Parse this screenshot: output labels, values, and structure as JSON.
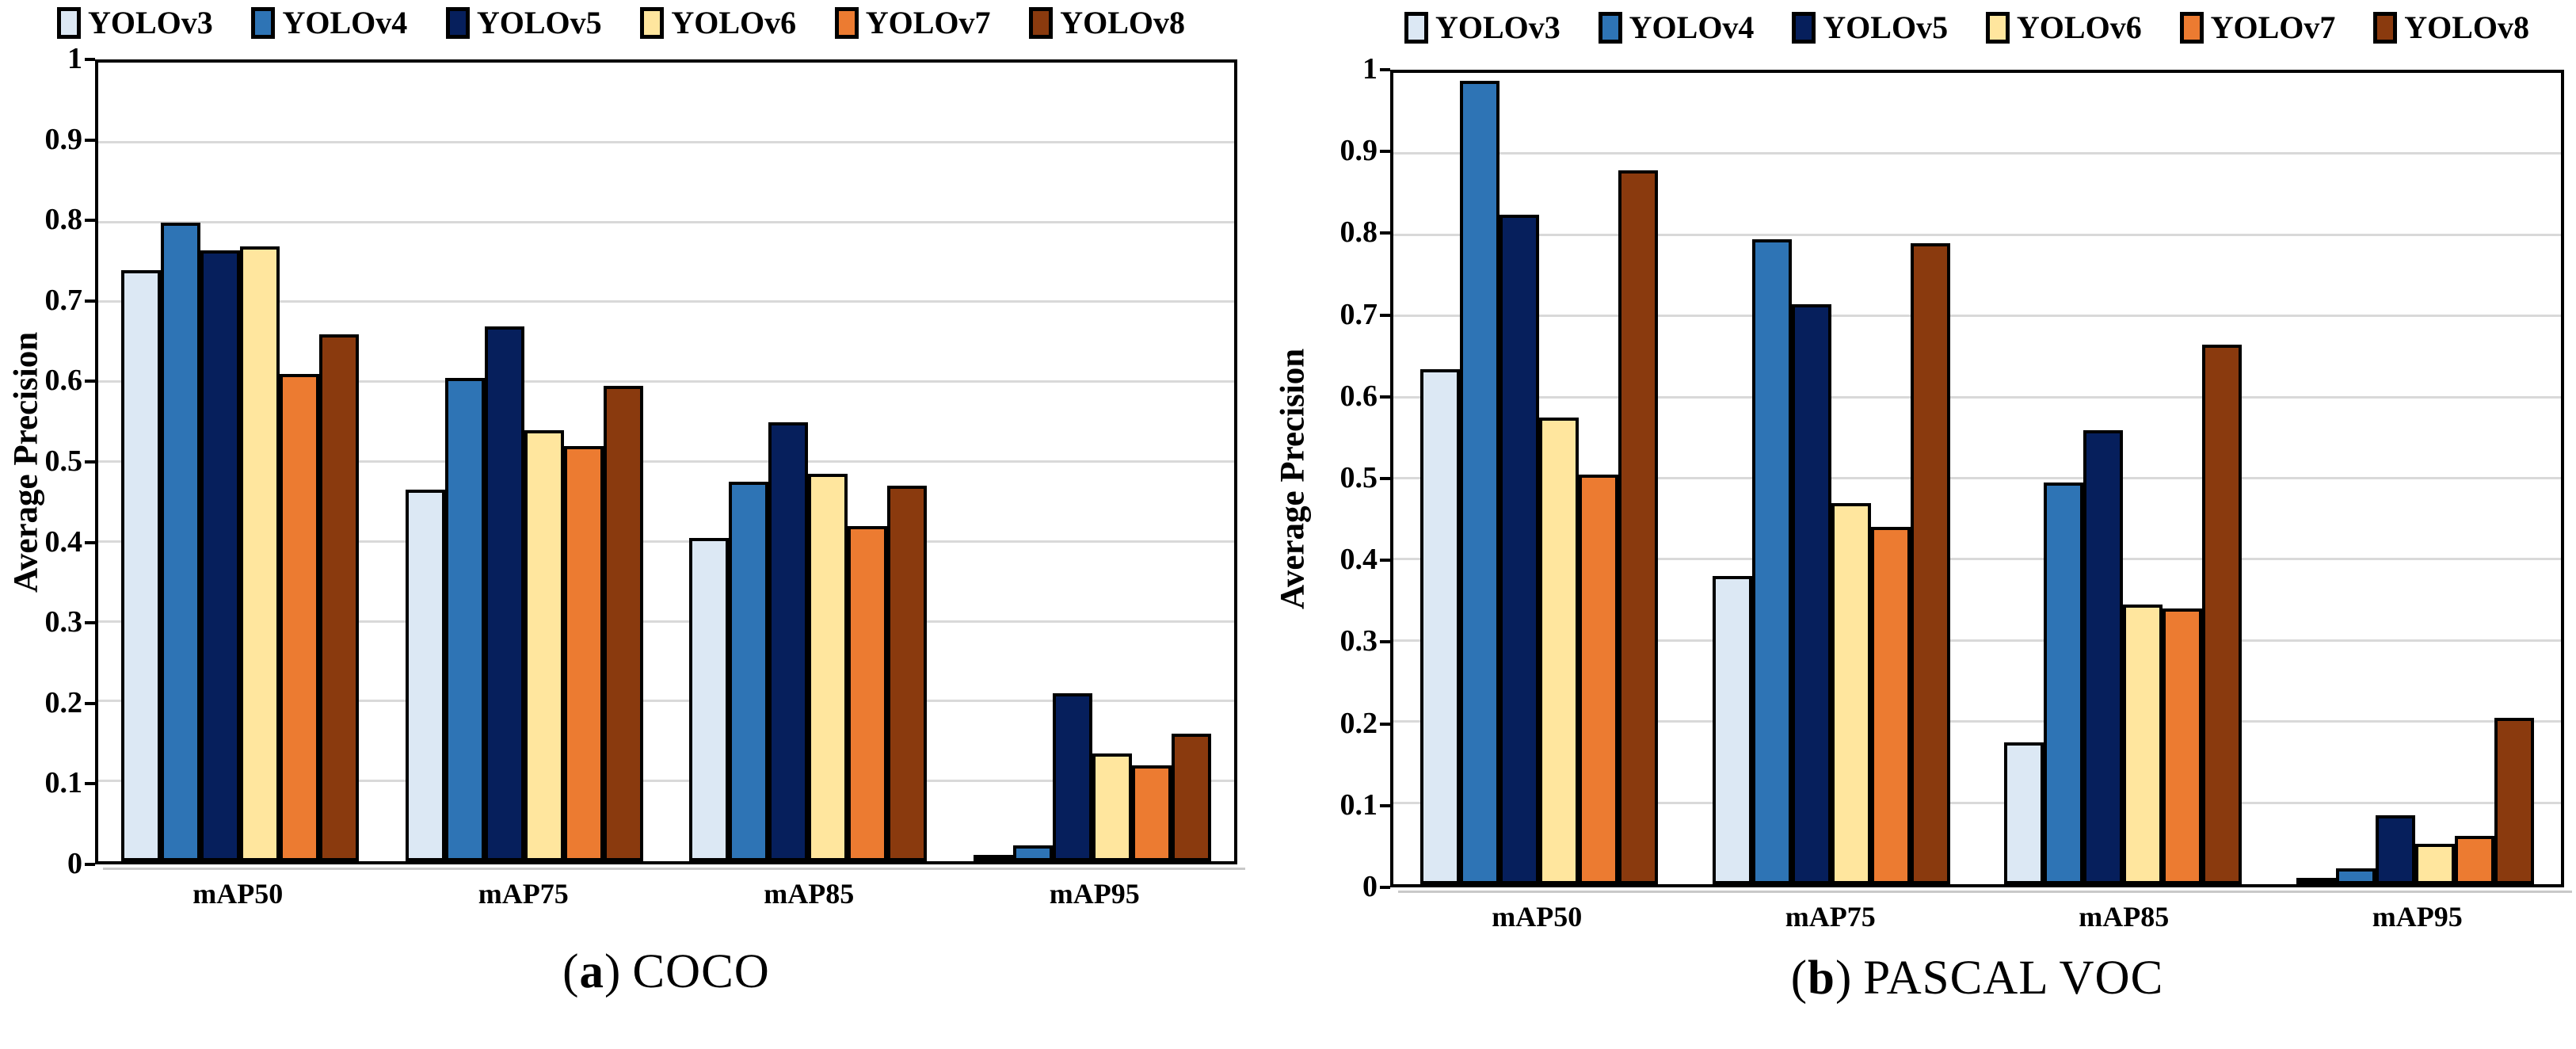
{
  "figure": {
    "series": [
      "YOLOv3",
      "YOLOv4",
      "YOLOv5",
      "YOLOv6",
      "YOLOv7",
      "YOLOv8"
    ],
    "colors": {
      "YOLOv3": "#dce8f4",
      "YOLOv4": "#2e74b5",
      "YOLOv5": "#061f5c",
      "YOLOv6": "#ffe69e",
      "YOLOv7": "#ec7b31",
      "YOLOv8": "#8a3a0e"
    },
    "grid_color": "#d9d9d9",
    "axis_color": "#000000",
    "ylabel": "Average Precision",
    "ytick_labels": [
      "1",
      "0.9",
      "0.8",
      "0.7",
      "0.6",
      "0.5",
      "0.4",
      "0.3",
      "0.2",
      "0.1",
      "0"
    ]
  },
  "chart_data": [
    {
      "type": "bar",
      "title": "(a) COCO",
      "caption": {
        "prefix": "(",
        "marker": "a",
        "suffix": ")",
        "label": "COCO"
      },
      "categories": [
        "mAP50",
        "mAP75",
        "mAP85",
        "mAP95"
      ],
      "xlabel": "",
      "ylabel": "Average Precision",
      "ylim": [
        0,
        1
      ],
      "grid": true,
      "legend_position": "top",
      "series": [
        {
          "name": "YOLOv3",
          "values": [
            0.74,
            0.465,
            0.405,
            0.005
          ]
        },
        {
          "name": "YOLOv4",
          "values": [
            0.8,
            0.605,
            0.475,
            0.02
          ]
        },
        {
          "name": "YOLOv5",
          "values": [
            0.765,
            0.67,
            0.55,
            0.21
          ]
        },
        {
          "name": "YOLOv6",
          "values": [
            0.77,
            0.54,
            0.485,
            0.135
          ]
        },
        {
          "name": "YOLOv7",
          "values": [
            0.61,
            0.52,
            0.42,
            0.12
          ]
        },
        {
          "name": "YOLOv8",
          "values": [
            0.66,
            0.595,
            0.47,
            0.16
          ]
        }
      ]
    },
    {
      "type": "bar",
      "title": "(b) PASCAL VOC",
      "caption": {
        "prefix": "(",
        "marker": "b",
        "suffix": ")",
        "label": "PASCAL VOC"
      },
      "categories": [
        "mAP50",
        "mAP75",
        "mAP85",
        "mAP95"
      ],
      "xlabel": "",
      "ylabel": "Average Precision",
      "ylim": [
        0,
        1
      ],
      "grid": true,
      "legend_position": "top",
      "series": [
        {
          "name": "YOLOv3",
          "values": [
            0.635,
            0.38,
            0.175,
            0.005
          ]
        },
        {
          "name": "YOLOv4",
          "values": [
            0.99,
            0.795,
            0.495,
            0.02
          ]
        },
        {
          "name": "YOLOv5",
          "values": [
            0.825,
            0.715,
            0.56,
            0.085
          ]
        },
        {
          "name": "YOLOv6",
          "values": [
            0.575,
            0.47,
            0.345,
            0.05
          ]
        },
        {
          "name": "YOLOv7",
          "values": [
            0.505,
            0.44,
            0.34,
            0.06
          ]
        },
        {
          "name": "YOLOv8",
          "values": [
            0.88,
            0.79,
            0.665,
            0.205
          ]
        }
      ]
    }
  ]
}
